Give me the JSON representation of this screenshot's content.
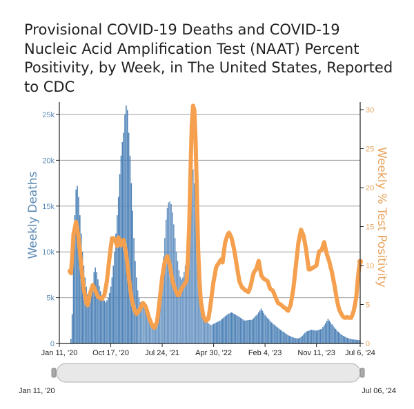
{
  "chart_data": {
    "type": "bar+line",
    "title": "Provisional COVID-19 Deaths and COVID-19 Nucleic Acid Amplification Test (NAAT) Percent Positivity, by Week, in The United States, Reported to CDC",
    "x_start": "Jan 11, '20",
    "x_end": "Jul 06, '24",
    "x_interval": "weekly",
    "x_tick_labels": [
      "Jan 11, '20",
      "Oct 17, '20",
      "Jul 24, '21",
      "Apr 30, '22",
      "Feb 4, '23",
      "Nov 11, '23",
      "Jul 6, '24"
    ],
    "x_tick_weeks": [
      0,
      40,
      80,
      120,
      160,
      200,
      234
    ],
    "ylabel_left": "Weekly Deaths",
    "ylabel_right": "Weekly % Test Positivity",
    "ylim_left": [
      0,
      26500
    ],
    "ylim_right": [
      0,
      31.3
    ],
    "left_ticks": [
      0,
      5000,
      10000,
      15000,
      20000,
      25000
    ],
    "left_tick_labels": [
      "0",
      "5k",
      "10k",
      "15k",
      "20k",
      "25k"
    ],
    "right_ticks": [
      0,
      5,
      10,
      15,
      20,
      25,
      30
    ],
    "right_tick_labels": [
      "0",
      "5",
      "10",
      "15",
      "20",
      "25",
      "30"
    ],
    "grid": "horizontal at left-axis ticks",
    "series": [
      {
        "name": "Weekly Deaths",
        "type": "bar",
        "axis": "left",
        "color": "#4f83b8",
        "values": [
          0,
          0,
          0,
          0,
          0,
          0,
          0,
          0,
          0,
          500,
          3200,
          9000,
          14000,
          16800,
          17200,
          16000,
          14000,
          12000,
          10000,
          8500,
          7200,
          6200,
          5400,
          5000,
          4800,
          5300,
          6500,
          7800,
          8300,
          7800,
          7000,
          6300,
          5700,
          5200,
          4900,
          4700,
          4500,
          4700,
          5000,
          5500,
          6200,
          7200,
          8500,
          10000,
          12000,
          14000,
          16000,
          18500,
          20500,
          22000,
          23000,
          25000,
          26000,
          25500,
          23000,
          20500,
          17500,
          14500,
          11500,
          9000,
          7200,
          5800,
          5000,
          4500,
          4400,
          4600,
          4300,
          3900,
          3500,
          3100,
          2700,
          2400,
          2100,
          1950,
          1900,
          2000,
          2400,
          3000,
          4000,
          5500,
          7500,
          9500,
          11500,
          13500,
          14800,
          15400,
          15500,
          15200,
          14300,
          13000,
          11500,
          10000,
          9000,
          8000,
          7300,
          7000,
          7200,
          7800,
          8500,
          9000,
          10000,
          11500,
          14000,
          17000,
          19000,
          17500,
          14500,
          11500,
          9000,
          7000,
          5500,
          4300,
          3500,
          3000,
          2600,
          2400,
          2200,
          2100,
          2000,
          2070,
          2140,
          2210,
          2290,
          2360,
          2430,
          2500,
          2620,
          2730,
          2850,
          2970,
          3080,
          3200,
          3270,
          3330,
          3400,
          3320,
          3230,
          3150,
          3070,
          2980,
          2900,
          2800,
          2700,
          2600,
          2500,
          2520,
          2530,
          2550,
          2570,
          2580,
          2600,
          2750,
          2900,
          3050,
          3200,
          3400,
          3600,
          3800,
          3570,
          3330,
          3100,
          2940,
          2780,
          2620,
          2460,
          2300,
          2190,
          2070,
          1960,
          1840,
          1730,
          1610,
          1500,
          1400,
          1300,
          1200,
          1100,
          1000,
          900,
          840,
          780,
          720,
          660,
          600,
          580,
          570,
          550,
          620,
          700,
          850,
          1000,
          1150,
          1300,
          1350,
          1400,
          1450,
          1500,
          1480,
          1450,
          1430,
          1400,
          1450,
          1500,
          1550,
          1600,
          1800,
          2000,
          2200,
          2450,
          2700,
          2500,
          2300,
          2100,
          1930,
          1750,
          1580,
          1400,
          1280,
          1150,
          1030,
          900,
          830,
          750,
          680,
          600,
          560,
          530,
          490,
          450,
          430,
          420,
          400,
          380,
          370,
          350
        ]
      },
      {
        "name": "Weekly % Test Positivity",
        "type": "line",
        "axis": "right",
        "color": "#f5a04f",
        "values": [
          null,
          null,
          null,
          null,
          null,
          null,
          null,
          null,
          9.3,
          9.0,
          11,
          14,
          14.8,
          15.6,
          14.6,
          13.5,
          11.8,
          10,
          8.5,
          7,
          6.1,
          5.2,
          4.9,
          5.7,
          6.5,
          7,
          7.5,
          7.2,
          6.8,
          6.4,
          6,
          5.9,
          5.8,
          5.7,
          6,
          6.2,
          7.1,
          8,
          9.5,
          11,
          12.3,
          13.5,
          13.5,
          13.4,
          13,
          12.5,
          13.6,
          13.1,
          12.6,
          13,
          13.3,
          12.4,
          11.5,
          10,
          8.5,
          7.2,
          6,
          5.2,
          4.5,
          4.1,
          3.8,
          4,
          4.2,
          4.5,
          4.9,
          5.2,
          5,
          4.8,
          4.3,
          3.7,
          3.2,
          2.8,
          2.4,
          2.1,
          2.0,
          2.4,
          2.8,
          4.1,
          5.5,
          7,
          8.5,
          9.5,
          10.5,
          10.9,
          11.2,
          10.6,
          10,
          9,
          8,
          7.5,
          7,
          6.6,
          6.2,
          6.2,
          6.6,
          7,
          7.3,
          7.5,
          7.8,
          8,
          11,
          15,
          22,
          28,
          30.5,
          30,
          26,
          19,
          12,
          8,
          5.5,
          4.5,
          3.5,
          3.2,
          2.9,
          3,
          3.2,
          4.3,
          5.5,
          6.8,
          8,
          8.9,
          9.8,
          10.1,
          10.3,
          10.6,
          10.8,
          10.4,
          11.8,
          13,
          13.5,
          14,
          14.2,
          13.9,
          13.5,
          12.8,
          12,
          11,
          10,
          9,
          8,
          7.6,
          7.2,
          7.1,
          6.9,
          6.8,
          6.7,
          6.6,
          7,
          7.5,
          8.3,
          9,
          9.3,
          9.5,
          10,
          10.6,
          9.7,
          8.8,
          8.5,
          8.3,
          8.2,
          8.1,
          8,
          7.5,
          7,
          6.9,
          6.8,
          6.4,
          6,
          5.6,
          5.2,
          5.1,
          5,
          4.9,
          4.7,
          4.6,
          4.5,
          4.3,
          4.2,
          4.6,
          5,
          6,
          7,
          8.5,
          10,
          11.5,
          13,
          13.8,
          14.6,
          14.2,
          13.8,
          12.9,
          12,
          10.7,
          9.5,
          9.5,
          9.6,
          9.7,
          9.8,
          9.9,
          10,
          10.9,
          11.8,
          11.9,
          12,
          12.5,
          13,
          12.2,
          11.5,
          11,
          10.5,
          9.8,
          9.2,
          8.3,
          7.5,
          6.5,
          5.5,
          4.8,
          4.2,
          3.9,
          3.6,
          3.4,
          3.3,
          3.3,
          3.4,
          3.3,
          3.3,
          3.3,
          3.7,
          4.2,
          5,
          6,
          8,
          9.5,
          10.5
        ]
      }
    ],
    "range_slider": {
      "start_label": "Jan 11, '20",
      "end_label": "Jul 06, '24",
      "selected_fraction": [
        0,
        1
      ]
    }
  }
}
